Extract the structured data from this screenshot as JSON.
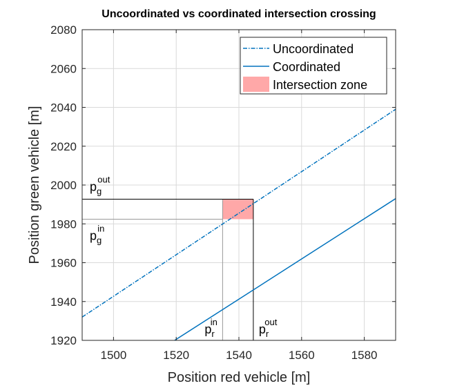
{
  "chart_data": {
    "type": "line",
    "title": "Uncoordinated vs coordinated intersection crossing",
    "xlabel": "Position red vehicle [m]",
    "ylabel": "Position green vehicle [m]",
    "xlim": [
      1490,
      1590
    ],
    "ylim": [
      1920,
      2080
    ],
    "xticks": [
      1500,
      1520,
      1540,
      1560,
      1580
    ],
    "yticks": [
      1920,
      1940,
      1960,
      1980,
      2000,
      2020,
      2040,
      2060,
      2080
    ],
    "grid": true,
    "legend_position": "top-right",
    "series": [
      {
        "name": "Uncoordinated",
        "style": "dash-dot",
        "color": "#0072BD",
        "x": [
          1490,
          1590
        ],
        "y": [
          1932,
          2039
        ]
      },
      {
        "name": "Coordinated",
        "style": "solid",
        "color": "#0072BD",
        "x": [
          1519.5,
          1590
        ],
        "y": [
          1920,
          1993
        ]
      }
    ],
    "intersection_zone": {
      "name": "Intersection zone",
      "color": "#FFA8A8",
      "x": [
        1534.8,
        1544.6
      ],
      "y": [
        1982.4,
        1992.7
      ]
    },
    "reference_lines": [
      {
        "label_base": "p",
        "label_sub": "r",
        "label_sup": "in",
        "axis": "x",
        "value": 1534.8
      },
      {
        "label_base": "p",
        "label_sub": "r",
        "label_sup": "out",
        "axis": "x",
        "value": 1544.6
      },
      {
        "label_base": "p",
        "label_sub": "g",
        "label_sup": "in",
        "axis": "y",
        "value": 1982.4
      },
      {
        "label_base": "p",
        "label_sub": "g",
        "label_sup": "out",
        "axis": "y",
        "value": 1992.7
      }
    ]
  }
}
